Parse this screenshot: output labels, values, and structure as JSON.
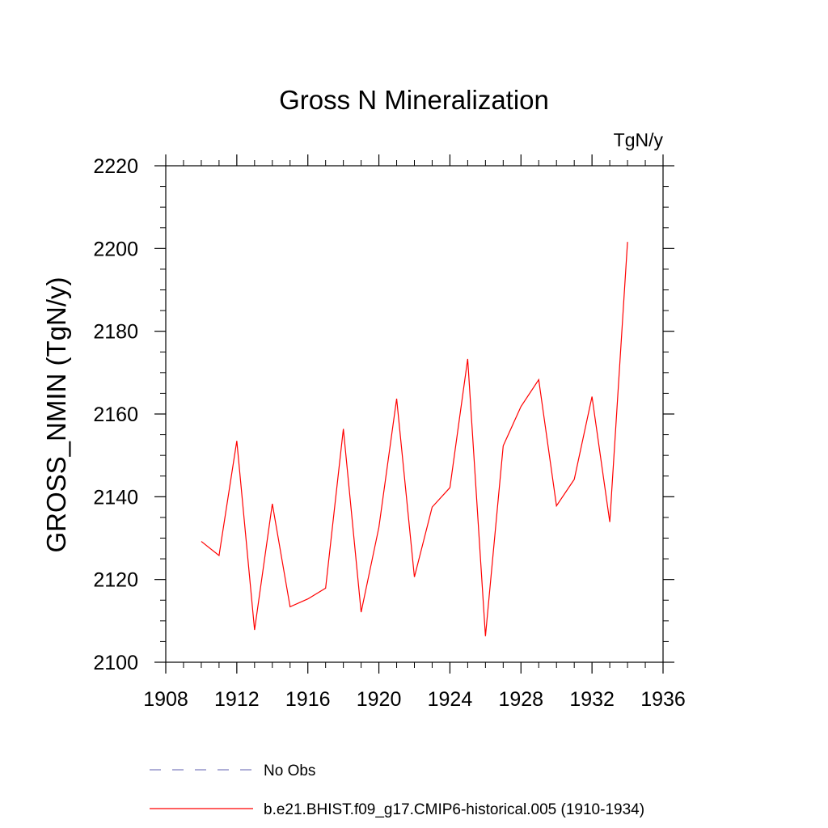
{
  "chart_data": {
    "type": "line",
    "title": "Gross N Mineralization",
    "units_label": "TgN/y",
    "ylabel": "GROSS_NMIN  (TgN/y)",
    "xlabel": "",
    "xlim": [
      1908,
      1936
    ],
    "ylim": [
      2100,
      2220
    ],
    "x_ticks": [
      1908,
      1912,
      1916,
      1920,
      1924,
      1928,
      1932,
      1936
    ],
    "y_ticks": [
      2100,
      2120,
      2140,
      2160,
      2180,
      2200,
      2220
    ],
    "grid": false,
    "series": [
      {
        "name": "b.e21.BHIST.f09_g17.CMIP6-historical.005 (1910-1934)",
        "color": "#ff0000",
        "style": "solid",
        "x": [
          1910,
          1911,
          1912,
          1913,
          1914,
          1915,
          1916,
          1917,
          1918,
          1919,
          1920,
          1921,
          1922,
          1923,
          1924,
          1925,
          1926,
          1927,
          1928,
          1929,
          1930,
          1931,
          1932,
          1933,
          1934
        ],
        "y": [
          2129.2,
          2125.8,
          2153.5,
          2107.8,
          2138.3,
          2113.4,
          2115.3,
          2117.9,
          2156.4,
          2112.1,
          2132.6,
          2163.7,
          2120.6,
          2137.5,
          2142.2,
          2173.3,
          2106.3,
          2152.3,
          2161.8,
          2168.3,
          2137.8,
          2144.2,
          2164.2,
          2133.9,
          2201.6
        ]
      }
    ],
    "legend": {
      "placement": "bottom",
      "entries": [
        {
          "label": "No Obs",
          "color": "#7f7fbf",
          "style": "dashed"
        },
        {
          "label": "b.e21.BHIST.f09_g17.CMIP6-historical.005 (1910-1934)",
          "color": "#ff0000",
          "style": "solid"
        }
      ]
    }
  }
}
